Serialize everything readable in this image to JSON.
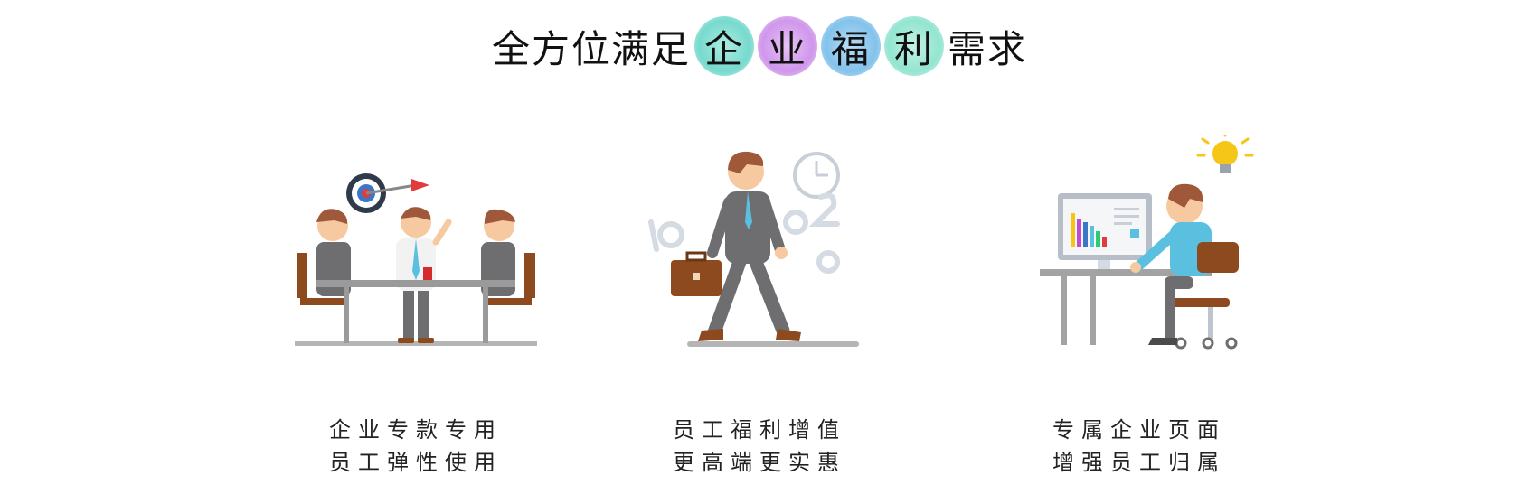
{
  "title": {
    "prefix": "全方位满足",
    "highlights": [
      {
        "char": "企",
        "color": "#5fd3c4"
      },
      {
        "char": "业",
        "color": "#c784e8"
      },
      {
        "char": "福",
        "color": "#6cb7e8"
      },
      {
        "char": "利",
        "color": "#7fe0c8"
      }
    ],
    "suffix": "需求"
  },
  "panels": [
    {
      "line1": "企业专款专用",
      "line2": "员工弹性使用",
      "icon": "meeting-dartboard"
    },
    {
      "line1": "员工福利增值",
      "line2": "更高端更实惠",
      "icon": "walking-businessman-clock"
    },
    {
      "line1": "专属企业页面",
      "line2": "增强员工归属",
      "icon": "desk-computer-lightbulb"
    }
  ],
  "colors": {
    "suit": "#6e6e70",
    "skin": "#f6c9a0",
    "hair": "#a0583a",
    "wood": "#8c4a1e",
    "shirt_blue": "#5bc0e0",
    "bulb": "#f5c518"
  }
}
